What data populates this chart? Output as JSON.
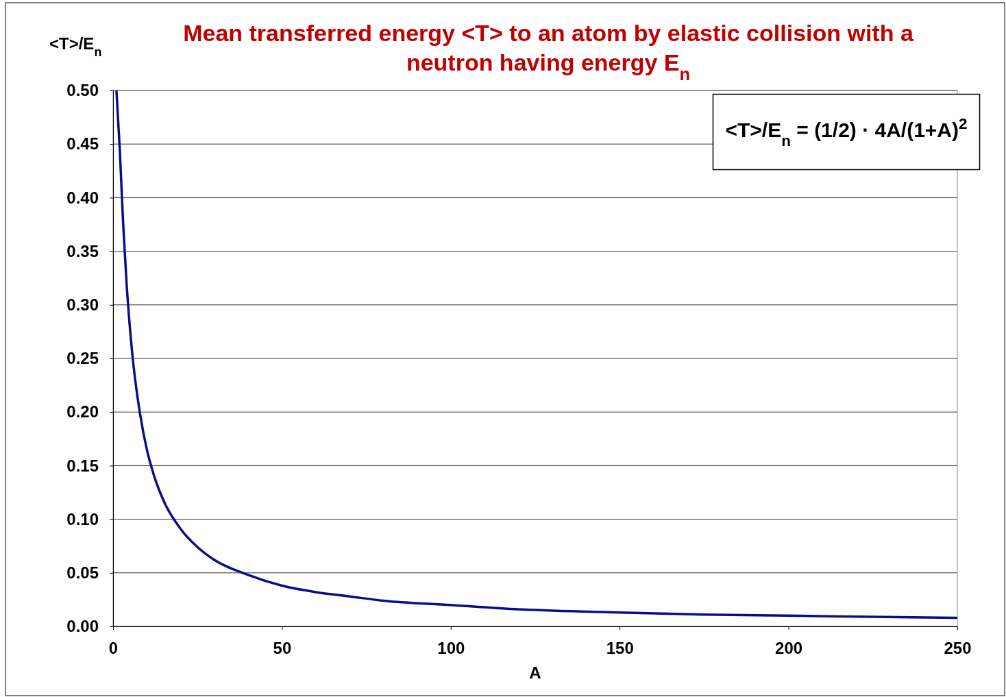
{
  "chart_data": {
    "type": "line",
    "title": "Mean transferred energy <T> to an atom by elastic collision with a neutron having energy E$_{n}$",
    "xlabel": "A",
    "ylabel": "<T>/E$_{n}$",
    "annotations": [
      "<T>/E$_{n}$ = (1/2) · 4A/(1+A)$^{2}$"
    ],
    "x": [
      1,
      2,
      3,
      4,
      5,
      6,
      8,
      10,
      12,
      15,
      20,
      25,
      30,
      40,
      50,
      60,
      70,
      80,
      100,
      120,
      150,
      175,
      200,
      225,
      250
    ],
    "series": [
      {
        "color": "#0c0c8a",
        "values": [
          0.5,
          0.444,
          0.375,
          0.32,
          0.278,
          0.245,
          0.198,
          0.165,
          0.142,
          0.117,
          0.091,
          0.074,
          0.062,
          0.048,
          0.038,
          0.032,
          0.028,
          0.024,
          0.02,
          0.016,
          0.013,
          0.011,
          0.01,
          0.009,
          0.008
        ]
      }
    ],
    "xlim": [
      0,
      250
    ],
    "xticks": [
      0,
      50,
      100,
      150,
      200,
      250
    ],
    "ylim": [
      0,
      0.5
    ],
    "yticks": [
      {
        "value": 0,
        "label": "0.00"
      },
      {
        "value": 0.05,
        "label": "0.05"
      },
      {
        "value": 0.1,
        "label": "0.10"
      },
      {
        "value": 0.15,
        "label": "0.15"
      },
      {
        "value": 0.2,
        "label": "0.20"
      },
      {
        "value": 0.25,
        "label": "0.25"
      },
      {
        "value": 0.3,
        "label": "0.30"
      },
      {
        "value": 0.35,
        "label": "0.35"
      },
      {
        "value": 0.4,
        "label": "0.40"
      },
      {
        "value": 0.45,
        "label": "0.45"
      },
      {
        "value": 0.5,
        "label": "0.50"
      }
    ],
    "grid": "y",
    "marker": "none",
    "line_style": "solid"
  }
}
